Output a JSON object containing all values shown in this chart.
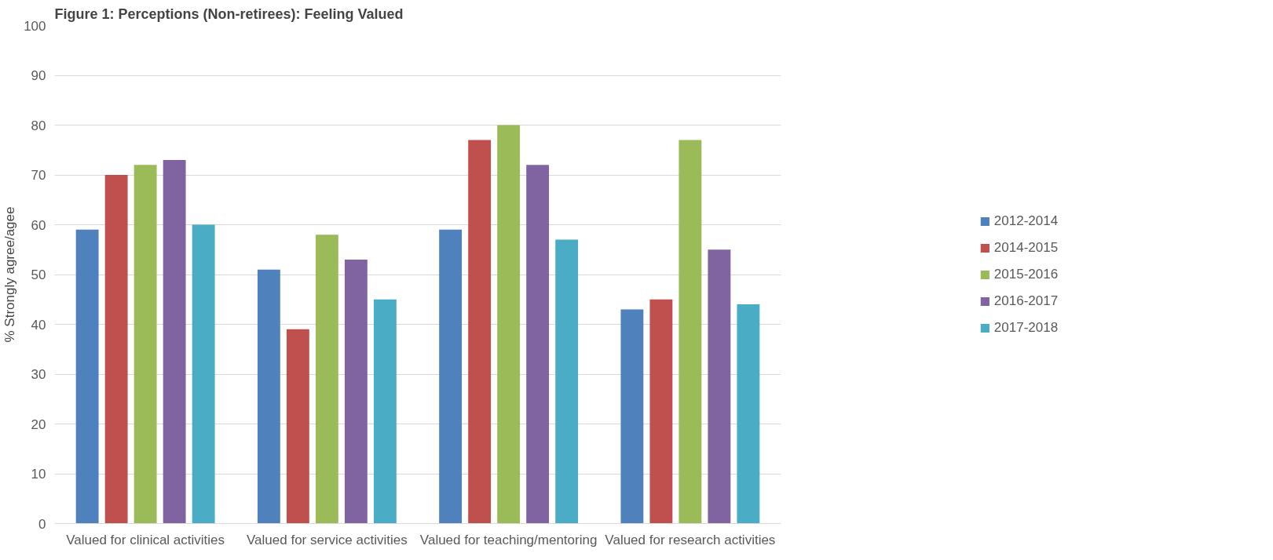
{
  "chart_data": {
    "type": "bar",
    "title": "Figure 1: Perceptions (Non-retirees): Feeling Valued",
    "ylabel": "% Strongly agree/agee",
    "categories": [
      "Valued for clinical activities",
      "Valued for service activities",
      "Valued for teaching/mentoring",
      "Valued for research activities"
    ],
    "series": [
      {
        "name": "2012-2014",
        "color": "#4f81bd",
        "values": [
          59,
          51,
          59,
          43
        ]
      },
      {
        "name": "2014-2015",
        "color": "#c0504d",
        "values": [
          70,
          39,
          77,
          45
        ]
      },
      {
        "name": "2015-2016",
        "color": "#9bbb59",
        "values": [
          72,
          58,
          80,
          77
        ]
      },
      {
        "name": "2016-2017",
        "color": "#8064a2",
        "values": [
          73,
          53,
          72,
          55
        ]
      },
      {
        "name": "2017-2018",
        "color": "#4bacc6",
        "values": [
          60,
          45,
          57,
          44
        ]
      }
    ],
    "ylim": [
      0,
      100
    ],
    "yticks": [
      0,
      10,
      20,
      30,
      40,
      50,
      60,
      70,
      80,
      90,
      100
    ],
    "grid": "y",
    "legend": "right"
  }
}
